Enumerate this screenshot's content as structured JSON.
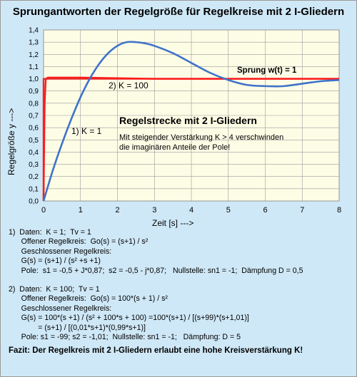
{
  "chart_data": {
    "type": "line",
    "title": "Sprungantworten der Regelgröße für Regelkreise mit 2 I-Gliedern",
    "xlabel": "Zeit   [s]  --->",
    "ylabel": "Regelgröße y  --->",
    "xlim": [
      0,
      8
    ],
    "ylim": [
      0,
      1.4
    ],
    "xticks": [
      0,
      1,
      2,
      3,
      4,
      5,
      6,
      7,
      8
    ],
    "yticks": [
      "0,0",
      "0,1",
      "0,2",
      "0,3",
      "0,4",
      "0,5",
      "0,6",
      "0,7",
      "0,8",
      "0,9",
      "1,0",
      "1,1",
      "1,2",
      "1,3",
      "1,4"
    ],
    "grid": true,
    "series": [
      {
        "name": "1) K = 1",
        "color": "#3f73c9",
        "x": [
          0,
          0.25,
          0.5,
          0.75,
          1.0,
          1.25,
          1.5,
          1.75,
          2.0,
          2.25,
          2.5,
          2.75,
          3.0,
          3.5,
          4.0,
          4.5,
          5.0,
          5.5,
          6.0,
          6.5,
          7.0,
          7.5,
          8.0
        ],
        "y": [
          0,
          0.25,
          0.47,
          0.67,
          0.85,
          1.0,
          1.12,
          1.21,
          1.27,
          1.3,
          1.3,
          1.29,
          1.27,
          1.21,
          1.13,
          1.05,
          0.99,
          0.95,
          0.94,
          0.94,
          0.96,
          0.98,
          0.99
        ]
      },
      {
        "name": "2) K = 100",
        "color": "#ff1a1a",
        "x": [
          0,
          0.03,
          0.06,
          0.12,
          0.3,
          1.0,
          3.0,
          5.0,
          8.0
        ],
        "y": [
          0,
          0.8,
          1.0,
          1.01,
          1.01,
          1.01,
          1.0,
          1.0,
          1.0
        ]
      },
      {
        "name": "Sprung  w(t) = 1",
        "color": "#e03030",
        "x": [
          0,
          0,
          8
        ],
        "y": [
          0,
          1,
          1
        ]
      }
    ],
    "annotations": {
      "sprung": "Sprung  w(t) = 1",
      "k100": "2) K = 100",
      "k1": "1) K = 1",
      "heading": "Regelstrecke mit 2 I-Gliedern",
      "note1": "Mit steigender Verstärkung  K > 4 verschwinden",
      "note2": "die imaginären Anteile der Pole!"
    }
  },
  "notes": {
    "block1": [
      "1)  Daten:  K = 1;  Tv = 1",
      "      Offener Regelkreis:  Go(s) = (s+1) / s²",
      "      Geschlossener Regelkreis:",
      "      G(s) = (s+1) / (s² +s +1)",
      "      Pole:  s1 = -0,5 + J*0,87;  s2 = -0,5 - j*0,87;   Nullstelle: sn1 = -1;  Dämpfung D = 0,5"
    ],
    "block2": [
      "2)  Daten:  K = 100;  Tv = 1",
      "      Offener Regelkreis:  Go(s) = 100*(s + 1) / s²",
      "      Geschlossener Regelkreis:",
      "      G(s) = 100*(s +1) / (s² + 100*s + 100) =100*(s+1) / [(s+99)*(s+1,01)]",
      "              = (s+1) / [(0,01*s+1)*(0,99*s+1)]",
      "      Pole: s1 = -99; s2 = -1,01;  Nullstelle: sn1 = -1;   Dämpfung: D = 5"
    ],
    "fazit": "Fazit: Der Regelkreis mit 2 I-Gliedern erlaubt eine hohe Kreisverstärkung K!"
  }
}
